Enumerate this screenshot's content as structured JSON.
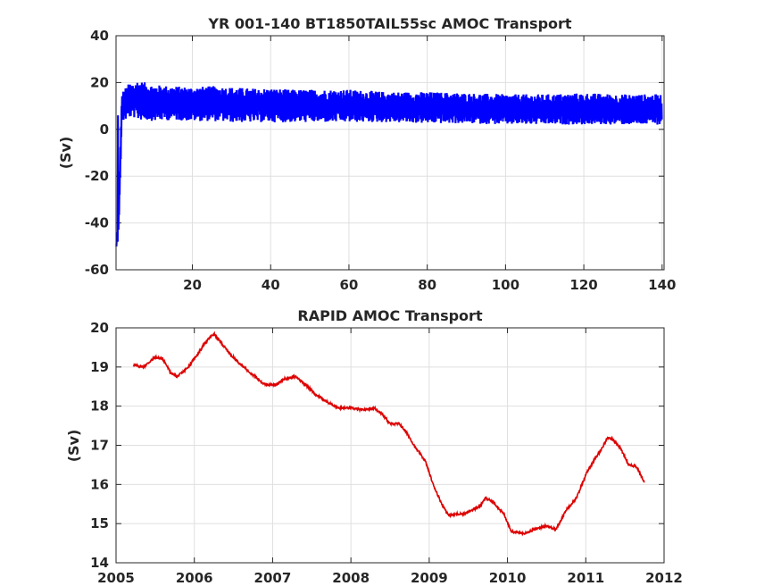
{
  "chart_data": [
    {
      "type": "line",
      "title": "YR 001-140 BT1850TAIL55sc AMOC Transport",
      "xlabel": "",
      "ylabel": "(Sv)",
      "xlim": [
        0.5,
        140.5
      ],
      "ylim": [
        -60,
        40
      ],
      "xticks": [
        20,
        40,
        60,
        80,
        100,
        120,
        140
      ],
      "yticks": [
        -60,
        -40,
        -20,
        0,
        20,
        40
      ],
      "grid": true,
      "series": [
        {
          "color": "#0000ff",
          "style": "noisy time series; spin-up drop to about -50 at year 1, then oscillates around the annual mean with envelope below",
          "x": [
            1,
            2,
            3,
            4,
            5,
            6,
            8,
            10,
            15,
            20,
            25,
            30,
            35,
            40,
            45,
            50,
            60,
            70,
            80,
            90,
            100,
            110,
            120,
            130,
            140
          ],
          "mean": [
            -48,
            9,
            11,
            12,
            13,
            12.5,
            12,
            12,
            11.5,
            11.5,
            11,
            11,
            10.5,
            10.5,
            10,
            10,
            10,
            9.5,
            9.5,
            9,
            8.5,
            8.5,
            8.5,
            8,
            8.5
          ],
          "upper": [
            -44,
            16,
            18,
            20,
            20,
            21,
            20,
            19,
            18.5,
            18,
            18.5,
            18,
            17.5,
            17.5,
            17,
            17,
            17,
            16,
            16,
            15.5,
            15,
            15,
            15.5,
            15,
            15
          ],
          "lower": [
            -51,
            3,
            4,
            5,
            5,
            4,
            4,
            3.5,
            4,
            3.5,
            3.5,
            3,
            3,
            3,
            3,
            3,
            3,
            3,
            2.5,
            2.5,
            2,
            2,
            2,
            2,
            2
          ]
        }
      ]
    },
    {
      "type": "line",
      "title": "RAPID AMOC Transport",
      "xlabel": "",
      "ylabel": "(Sv)",
      "xlim": [
        2005,
        2012
      ],
      "ylim": [
        14,
        20
      ],
      "xticks": [
        2005,
        2006,
        2007,
        2008,
        2009,
        2010,
        2011,
        2012
      ],
      "yticks": [
        14,
        15,
        16,
        17,
        18,
        19,
        20
      ],
      "grid": true,
      "series": [
        {
          "color": "#dd0000",
          "x": [
            2005.22,
            2005.35,
            2005.5,
            2005.6,
            2005.7,
            2005.78,
            2005.9,
            2006.05,
            2006.15,
            2006.25,
            2006.35,
            2006.45,
            2006.6,
            2006.75,
            2006.9,
            2007.05,
            2007.15,
            2007.3,
            2007.45,
            2007.55,
            2007.7,
            2007.85,
            2008.0,
            2008.15,
            2008.3,
            2008.4,
            2008.5,
            2008.62,
            2008.72,
            2008.82,
            2008.95,
            2009.05,
            2009.15,
            2009.25,
            2009.35,
            2009.45,
            2009.55,
            2009.65,
            2009.72,
            2009.82,
            2009.95,
            2010.05,
            2010.2,
            2010.35,
            2010.5,
            2010.62,
            2010.75,
            2010.88,
            2011.0,
            2011.1,
            2011.2,
            2011.28,
            2011.35,
            2011.45,
            2011.55,
            2011.65,
            2011.75
          ],
          "y": [
            19.05,
            19.0,
            19.25,
            19.2,
            18.85,
            18.75,
            18.95,
            19.35,
            19.65,
            19.85,
            19.6,
            19.35,
            19.05,
            18.8,
            18.55,
            18.55,
            18.7,
            18.75,
            18.5,
            18.3,
            18.1,
            17.95,
            17.95,
            17.9,
            17.95,
            17.8,
            17.55,
            17.55,
            17.3,
            16.95,
            16.6,
            16.0,
            15.55,
            15.2,
            15.25,
            15.25,
            15.35,
            15.45,
            15.65,
            15.55,
            15.25,
            14.8,
            14.75,
            14.85,
            14.95,
            14.85,
            15.35,
            15.65,
            16.25,
            16.6,
            16.9,
            17.2,
            17.15,
            16.9,
            16.5,
            16.45,
            16.05
          ]
        }
      ]
    }
  ]
}
